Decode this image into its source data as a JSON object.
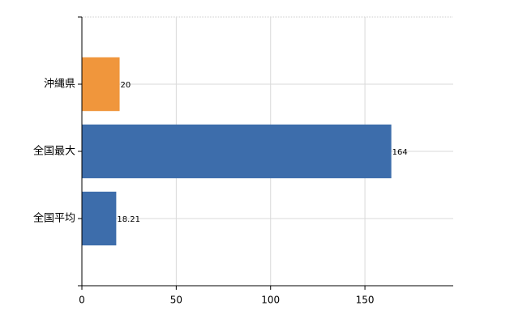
{
  "chart_data": {
    "type": "bar",
    "orientation": "horizontal",
    "categories": [
      "沖縄県",
      "全国最大",
      "全国平均"
    ],
    "values": [
      20,
      164,
      18.21
    ],
    "colors": [
      "#f0963c",
      "#3d6dab",
      "#3d6dab"
    ],
    "xlim": [
      0,
      196.8
    ],
    "xticks": [
      0,
      50,
      100,
      150
    ],
    "grid": true
  }
}
